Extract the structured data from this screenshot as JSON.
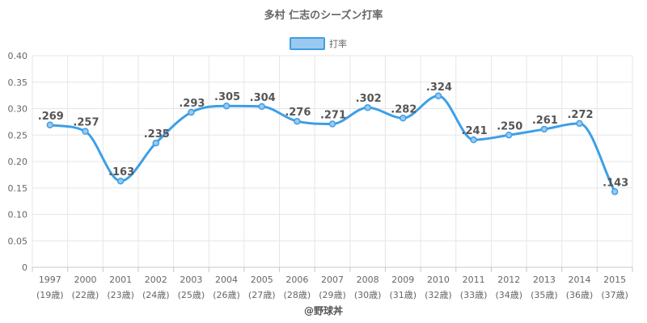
{
  "chart_data": {
    "type": "line",
    "title": "多村 仁志のシーズン打率",
    "legend": {
      "label": "打率",
      "position": "top"
    },
    "credit": "@野球丼",
    "categories": [
      "1997",
      "2000",
      "2001",
      "2002",
      "2003",
      "2004",
      "2005",
      "2006",
      "2007",
      "2008",
      "2009",
      "2010",
      "2011",
      "2012",
      "2013",
      "2014",
      "2015"
    ],
    "ages": [
      "(19歳)",
      "(22歳)",
      "(23歳)",
      "(24歳)",
      "(25歳)",
      "(26歳)",
      "(27歳)",
      "(28歳)",
      "(29歳)",
      "(30歳)",
      "(31歳)",
      "(32歳)",
      "(33歳)",
      "(34歳)",
      "(35歳)",
      "(36歳)",
      "(37歳)"
    ],
    "series": [
      {
        "name": "打率",
        "values": [
          0.269,
          0.257,
          0.163,
          0.235,
          0.293,
          0.305,
          0.304,
          0.276,
          0.271,
          0.302,
          0.282,
          0.324,
          0.241,
          0.25,
          0.261,
          0.272,
          0.143
        ],
        "labels": [
          ".269",
          ".257",
          ".163",
          ".235",
          ".293",
          ".305",
          ".304",
          ".276",
          ".271",
          ".302",
          ".282",
          ".324",
          ".241",
          ".250",
          ".261",
          ".272",
          ".143"
        ]
      }
    ],
    "ylim": [
      0,
      0.4
    ],
    "yticks": [
      "0",
      "0.05",
      "0.10",
      "0.15",
      "0.20",
      "0.25",
      "0.30",
      "0.35",
      "0.40"
    ],
    "grid": true,
    "colors": {
      "line": "#3d9fe6",
      "legend_fill": "#9cc9ef",
      "legend_border": "#3d9fe6"
    }
  }
}
